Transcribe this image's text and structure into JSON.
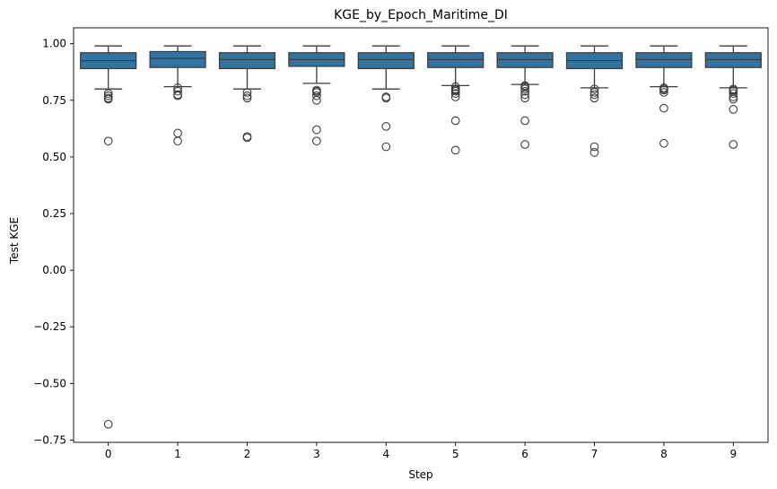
{
  "chart_data": {
    "type": "box",
    "title": "KGE_by_Epoch_Maritime_DI",
    "xlabel": "Step",
    "ylabel": "Test KGE",
    "categories": [
      "0",
      "1",
      "2",
      "3",
      "4",
      "5",
      "6",
      "7",
      "8",
      "9"
    ],
    "ylim": [
      -0.76,
      1.07
    ],
    "yticks": [
      1.0,
      0.75,
      0.5,
      0.25,
      0.0,
      -0.25,
      -0.5,
      -0.75
    ],
    "ytick_labels": [
      "1.00",
      "0.75",
      "0.50",
      "0.25",
      "0.00",
      "−0.25",
      "−0.50",
      "−0.75"
    ],
    "box_color": "#3274a1",
    "edge_color": "#3d3d3d",
    "boxes": [
      {
        "x": "0",
        "whisker_low": 0.8,
        "q1": 0.89,
        "median": 0.925,
        "q3": 0.96,
        "whisker_high": 0.99,
        "outliers": [
          0.78,
          0.77,
          0.76,
          0.755,
          0.57,
          -0.68
        ]
      },
      {
        "x": "1",
        "whisker_low": 0.81,
        "q1": 0.895,
        "median": 0.935,
        "q3": 0.965,
        "whisker_high": 0.99,
        "outliers": [
          0.805,
          0.79,
          0.775,
          0.77,
          0.605,
          0.57
        ]
      },
      {
        "x": "2",
        "whisker_low": 0.8,
        "q1": 0.89,
        "median": 0.93,
        "q3": 0.96,
        "whisker_high": 0.99,
        "outliers": [
          0.785,
          0.77,
          0.76,
          0.59,
          0.585
        ]
      },
      {
        "x": "3",
        "whisker_low": 0.825,
        "q1": 0.9,
        "median": 0.93,
        "q3": 0.96,
        "whisker_high": 0.99,
        "outliers": [
          0.795,
          0.79,
          0.785,
          0.77,
          0.75,
          0.62,
          0.57
        ]
      },
      {
        "x": "4",
        "whisker_low": 0.8,
        "q1": 0.89,
        "median": 0.93,
        "q3": 0.96,
        "whisker_high": 0.99,
        "outliers": [
          0.765,
          0.76,
          0.635,
          0.545
        ]
      },
      {
        "x": "5",
        "whisker_low": 0.815,
        "q1": 0.895,
        "median": 0.93,
        "q3": 0.96,
        "whisker_high": 0.99,
        "outliers": [
          0.81,
          0.8,
          0.795,
          0.79,
          0.78,
          0.765,
          0.66,
          0.53
        ]
      },
      {
        "x": "6",
        "whisker_low": 0.82,
        "q1": 0.895,
        "median": 0.93,
        "q3": 0.96,
        "whisker_high": 0.99,
        "outliers": [
          0.815,
          0.81,
          0.8,
          0.79,
          0.775,
          0.76,
          0.66,
          0.555
        ]
      },
      {
        "x": "7",
        "whisker_low": 0.805,
        "q1": 0.89,
        "median": 0.925,
        "q3": 0.96,
        "whisker_high": 0.99,
        "outliers": [
          0.8,
          0.785,
          0.775,
          0.76,
          0.545,
          0.52
        ]
      },
      {
        "x": "8",
        "whisker_low": 0.81,
        "q1": 0.895,
        "median": 0.93,
        "q3": 0.96,
        "whisker_high": 0.99,
        "outliers": [
          0.805,
          0.8,
          0.795,
          0.785,
          0.715,
          0.56
        ]
      },
      {
        "x": "9",
        "whisker_low": 0.805,
        "q1": 0.895,
        "median": 0.93,
        "q3": 0.96,
        "whisker_high": 0.99,
        "outliers": [
          0.8,
          0.795,
          0.79,
          0.78,
          0.765,
          0.755,
          0.71,
          0.555
        ]
      }
    ]
  }
}
